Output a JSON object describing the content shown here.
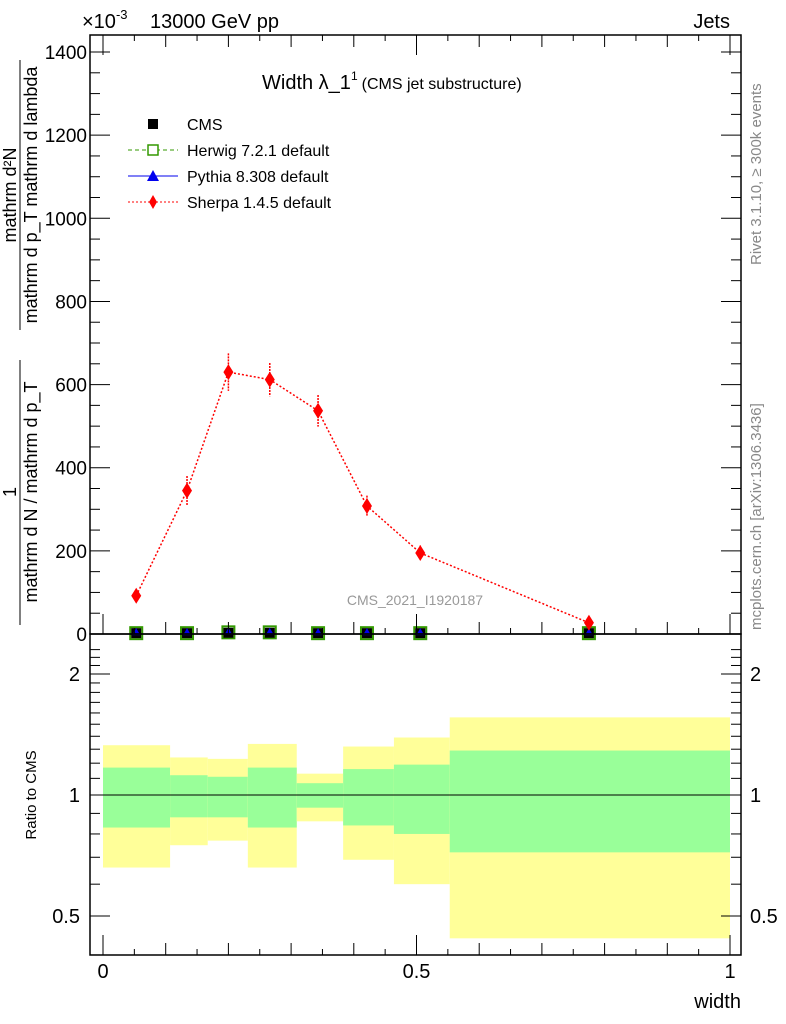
{
  "header": {
    "left": "13000 GeV pp",
    "right": "Jets",
    "exponent_base": "×10",
    "exponent_power": "-3"
  },
  "side_labels": {
    "rivet": "Rivet 3.1.10, ≥ 300k events",
    "mcplots": "mcplots.cern.ch [arXiv:1306.3436]"
  },
  "watermark": "CMS_2021_I1920187",
  "colors": {
    "cms": "#000000",
    "herwig": "#339900",
    "pythia": "#0000ee",
    "sherpa": "#ff0000",
    "band_inner": "#99ff99",
    "band_outer": "#ffff99"
  },
  "chart_data": [
    {
      "type": "line",
      "title": "Width λ_1",
      "title_sup": "1",
      "subtitle": "(CMS jet substructure)",
      "ylabel_prefactor_num": "1",
      "ylabel_prefactor_den": "mathrm d N / mathrm d p_T",
      "ylabel_num": "mathrm d²N",
      "ylabel_den": "mathrm d p_T mathrm d lambda",
      "ylim": [
        0,
        1450
      ],
      "yticks": [
        0,
        200,
        400,
        600,
        800,
        1000,
        1200,
        1400
      ],
      "y_multiplier": "1e-3",
      "xlim": [
        -0.02,
        1.0
      ],
      "x": [
        0.053,
        0.134,
        0.2,
        0.266,
        0.343,
        0.421,
        0.506,
        0.775
      ],
      "legend": [
        "CMS",
        "Herwig 7.2.1 default",
        "Pythia 8.308 default",
        "Sherpa 1.4.5 default"
      ],
      "legend_position": "top-left",
      "series": [
        {
          "name": "CMS",
          "values": [
            2,
            2,
            3,
            3,
            2,
            2,
            2,
            2
          ]
        },
        {
          "name": "Herwig 7.2.1 default",
          "values": [
            2,
            2,
            4,
            4,
            2,
            2,
            2,
            2
          ]
        },
        {
          "name": "Pythia 8.308 default",
          "values": [
            2,
            2,
            3,
            3,
            2,
            2,
            2,
            2
          ]
        },
        {
          "name": "Sherpa 1.4.5 default",
          "values": [
            92,
            345,
            630,
            612,
            537,
            308,
            195,
            27
          ],
          "errors": [
            10,
            35,
            45,
            40,
            38,
            25,
            18,
            8
          ]
        }
      ]
    },
    {
      "type": "area",
      "ylabel": "Ratio to CMS",
      "xlabel": "width",
      "xticks": [
        0,
        0.5,
        1
      ],
      "xtick_labels": [
        "0",
        "0.5",
        "1"
      ],
      "yticks": [
        0.5,
        1,
        2
      ],
      "ytick_labels": [
        "0.5",
        "1",
        "2"
      ],
      "ylim": [
        0.37,
        2.4
      ],
      "yscale": "log",
      "bin_edges": [
        0,
        0.107,
        0.167,
        0.231,
        0.309,
        0.383,
        0.464,
        0.553,
        1.0
      ],
      "inner_band": {
        "low": [
          0.83,
          0.88,
          0.88,
          0.83,
          0.93,
          0.84,
          0.8,
          0.72
        ],
        "high": [
          1.17,
          1.12,
          1.11,
          1.17,
          1.07,
          1.16,
          1.19,
          1.29
        ]
      },
      "outer_band": {
        "low": [
          0.66,
          0.75,
          0.77,
          0.66,
          0.86,
          0.69,
          0.6,
          0.44
        ],
        "high": [
          1.33,
          1.24,
          1.23,
          1.34,
          1.13,
          1.32,
          1.39,
          1.56
        ]
      }
    }
  ]
}
